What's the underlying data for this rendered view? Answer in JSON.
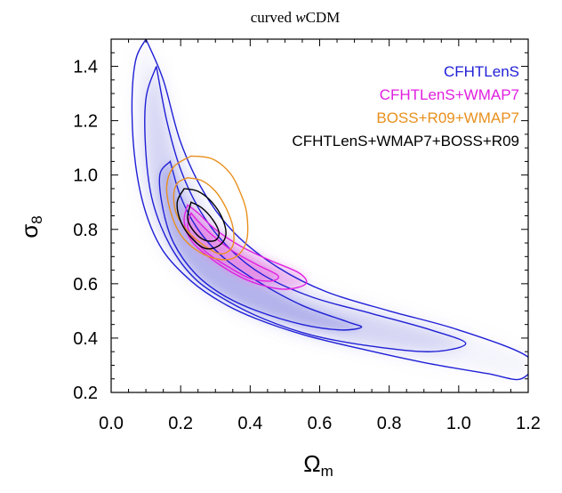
{
  "chart_data": {
    "type": "contour",
    "title_prefix": "curved ",
    "title_symbol": "w",
    "title_suffix": "CDM",
    "xlabel_symbol": "Ω",
    "xlabel_sub": "m",
    "ylabel_symbol": "σ",
    "ylabel_sub": "8",
    "xlim": [
      0.0,
      1.2
    ],
    "ylim": [
      0.2,
      1.5
    ],
    "xticks": [
      0.0,
      0.2,
      0.4,
      0.6,
      0.8,
      1.0,
      1.2
    ],
    "xtick_labels": [
      "0.0",
      "0.2",
      "0.4",
      "0.6",
      "0.8",
      "1.0",
      "1.2"
    ],
    "yticks": [
      0.2,
      0.4,
      0.6,
      0.8,
      1.0,
      1.2,
      1.4
    ],
    "ytick_labels": [
      "0.2",
      "0.4",
      "0.6",
      "0.8",
      "1.0",
      "1.2",
      "1.4"
    ],
    "legend_position": "top-right",
    "series": [
      {
        "name": "CFHTLenS",
        "color": "#1f1fd6",
        "fill": "#a8a8e8",
        "contours": [
          [
            [
              0.17,
              1.05
            ],
            [
              0.2,
              0.92
            ],
            [
              0.25,
              0.8
            ],
            [
              0.32,
              0.7
            ],
            [
              0.42,
              0.61
            ],
            [
              0.55,
              0.52
            ],
            [
              0.68,
              0.46
            ],
            [
              0.72,
              0.44
            ],
            [
              0.66,
              0.43
            ],
            [
              0.55,
              0.45
            ],
            [
              0.42,
              0.5
            ],
            [
              0.32,
              0.56
            ],
            [
              0.24,
              0.64
            ],
            [
              0.18,
              0.75
            ],
            [
              0.15,
              0.87
            ],
            [
              0.14,
              1.0
            ],
            [
              0.17,
              1.05
            ]
          ],
          [
            [
              0.13,
              1.4
            ],
            [
              0.16,
              1.2
            ],
            [
              0.2,
              1.02
            ],
            [
              0.26,
              0.86
            ],
            [
              0.34,
              0.73
            ],
            [
              0.44,
              0.63
            ],
            [
              0.58,
              0.55
            ],
            [
              0.75,
              0.49
            ],
            [
              0.92,
              0.43
            ],
            [
              1.02,
              0.38
            ],
            [
              0.92,
              0.35
            ],
            [
              0.75,
              0.37
            ],
            [
              0.58,
              0.41
            ],
            [
              0.44,
              0.47
            ],
            [
              0.33,
              0.54
            ],
            [
              0.24,
              0.62
            ],
            [
              0.17,
              0.74
            ],
            [
              0.12,
              0.9
            ],
            [
              0.1,
              1.08
            ],
            [
              0.1,
              1.28
            ],
            [
              0.13,
              1.4
            ]
          ],
          [
            [
              0.1,
              1.5
            ],
            [
              0.15,
              1.35
            ],
            [
              0.2,
              1.12
            ],
            [
              0.27,
              0.93
            ],
            [
              0.36,
              0.78
            ],
            [
              0.48,
              0.66
            ],
            [
              0.62,
              0.57
            ],
            [
              0.8,
              0.5
            ],
            [
              1.0,
              0.43
            ],
            [
              1.2,
              0.33
            ],
            [
              1.18,
              0.25
            ],
            [
              1.08,
              0.27
            ],
            [
              0.9,
              0.31
            ],
            [
              0.72,
              0.36
            ],
            [
              0.56,
              0.41
            ],
            [
              0.42,
              0.47
            ],
            [
              0.32,
              0.53
            ],
            [
              0.23,
              0.61
            ],
            [
              0.15,
              0.72
            ],
            [
              0.1,
              0.86
            ],
            [
              0.07,
              1.04
            ],
            [
              0.06,
              1.25
            ],
            [
              0.07,
              1.42
            ],
            [
              0.1,
              1.5
            ]
          ]
        ]
      },
      {
        "name": "CFHTLenS+WMAP7",
        "color": "#e020e0",
        "fill": "#e58ae5",
        "contours": [
          [
            [
              0.23,
              0.86
            ],
            [
              0.25,
              0.83
            ],
            [
              0.29,
              0.78
            ],
            [
              0.35,
              0.72
            ],
            [
              0.42,
              0.67
            ],
            [
              0.48,
              0.63
            ],
            [
              0.46,
              0.61
            ],
            [
              0.4,
              0.62
            ],
            [
              0.34,
              0.66
            ],
            [
              0.28,
              0.71
            ],
            [
              0.24,
              0.76
            ],
            [
              0.22,
              0.81
            ],
            [
              0.23,
              0.86
            ]
          ],
          [
            [
              0.22,
              0.89
            ],
            [
              0.25,
              0.86
            ],
            [
              0.3,
              0.8
            ],
            [
              0.37,
              0.74
            ],
            [
              0.45,
              0.69
            ],
            [
              0.54,
              0.64
            ],
            [
              0.56,
              0.6
            ],
            [
              0.5,
              0.58
            ],
            [
              0.42,
              0.6
            ],
            [
              0.35,
              0.64
            ],
            [
              0.28,
              0.7
            ],
            [
              0.23,
              0.76
            ],
            [
              0.21,
              0.83
            ],
            [
              0.22,
              0.89
            ]
          ]
        ]
      },
      {
        "name": "BOSS+R09+WMAP7",
        "color": "#e8901e",
        "contours": [
          [
            [
              0.22,
              0.99
            ],
            [
              0.26,
              0.98
            ],
            [
              0.3,
              0.94
            ],
            [
              0.33,
              0.88
            ],
            [
              0.35,
              0.81
            ],
            [
              0.35,
              0.74
            ],
            [
              0.32,
              0.71
            ],
            [
              0.28,
              0.73
            ],
            [
              0.23,
              0.78
            ],
            [
              0.19,
              0.85
            ],
            [
              0.18,
              0.92
            ],
            [
              0.19,
              0.97
            ],
            [
              0.22,
              0.99
            ]
          ],
          [
            [
              0.23,
              1.07
            ],
            [
              0.29,
              1.06
            ],
            [
              0.34,
              1.01
            ],
            [
              0.37,
              0.94
            ],
            [
              0.39,
              0.86
            ],
            [
              0.39,
              0.76
            ],
            [
              0.36,
              0.7
            ],
            [
              0.31,
              0.69
            ],
            [
              0.25,
              0.72
            ],
            [
              0.2,
              0.78
            ],
            [
              0.17,
              0.87
            ],
            [
              0.16,
              0.96
            ],
            [
              0.18,
              1.03
            ],
            [
              0.23,
              1.07
            ]
          ]
        ]
      },
      {
        "name": "CFHTLenS+WMAP7+BOSS+R09",
        "color": "#000000",
        "contours": [
          [
            [
              0.23,
              0.9
            ],
            [
              0.26,
              0.88
            ],
            [
              0.29,
              0.84
            ],
            [
              0.31,
              0.79
            ],
            [
              0.3,
              0.76
            ],
            [
              0.27,
              0.76
            ],
            [
              0.24,
              0.79
            ],
            [
              0.22,
              0.84
            ],
            [
              0.23,
              0.9
            ]
          ],
          [
            [
              0.21,
              0.95
            ],
            [
              0.25,
              0.94
            ],
            [
              0.29,
              0.9
            ],
            [
              0.32,
              0.84
            ],
            [
              0.33,
              0.78
            ],
            [
              0.31,
              0.74
            ],
            [
              0.27,
              0.73
            ],
            [
              0.23,
              0.77
            ],
            [
              0.2,
              0.83
            ],
            [
              0.19,
              0.9
            ],
            [
              0.21,
              0.95
            ]
          ]
        ]
      }
    ]
  }
}
